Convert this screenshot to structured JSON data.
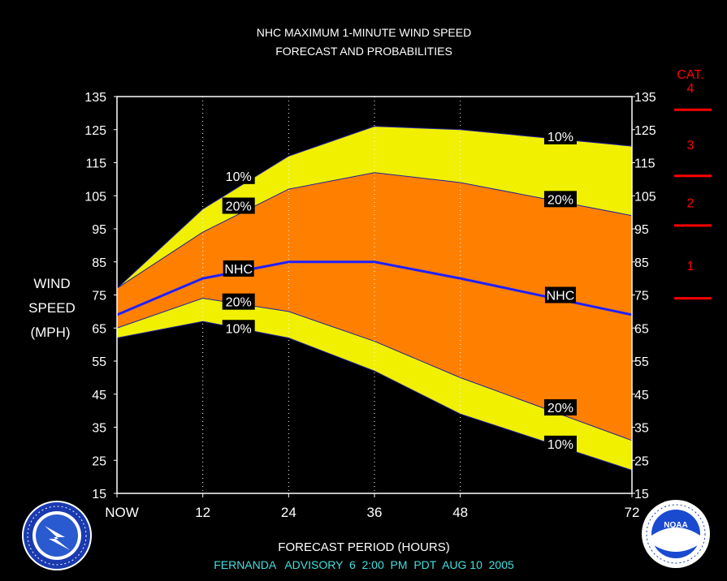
{
  "chart_data": {
    "type": "area",
    "title": "NHC MAXIMUM 1-MINUTE WIND SPEED",
    "subtitle": "FORECAST AND PROBABILITIES",
    "xlabel": "FORECAST PERIOD (HOURS)",
    "ylabel_lines": [
      "WIND",
      "SPEED",
      "(MPH)"
    ],
    "footer": "FERNANDA   ADVISORY  6  2:00  PM  PDT  AUG 10  2005",
    "x_tick_labels": [
      "NOW",
      "12",
      "24",
      "36",
      "48",
      "72"
    ],
    "x_tick_values": [
      0,
      12,
      24,
      36,
      48,
      72
    ],
    "y_ticks": [
      15,
      25,
      35,
      45,
      55,
      65,
      75,
      85,
      95,
      105,
      115,
      125,
      135
    ],
    "xlim": [
      0,
      72
    ],
    "ylim": [
      15,
      135
    ],
    "grid": "dotted vertical lines at 12, 24, 36, 48",
    "x": [
      0,
      12,
      24,
      36,
      48,
      72
    ],
    "series": [
      {
        "role": "upper_10",
        "values": [
          77,
          101,
          117,
          126,
          125,
          120
        ]
      },
      {
        "role": "upper_20",
        "values": [
          77,
          94,
          107,
          112,
          109,
          99
        ]
      },
      {
        "role": "nhc",
        "values": [
          69,
          80,
          85,
          85,
          80,
          69
        ]
      },
      {
        "role": "lower_20",
        "values": [
          65,
          74,
          70,
          61,
          50,
          31
        ]
      },
      {
        "role": "lower_10",
        "values": [
          62,
          67,
          62,
          52,
          39,
          22
        ]
      }
    ],
    "band_labels": [
      {
        "text": "10%",
        "x": 17,
        "y": 111
      },
      {
        "text": "20%",
        "x": 17,
        "y": 102
      },
      {
        "text": "NHC",
        "x": 17,
        "y": 83
      },
      {
        "text": "20%",
        "x": 17,
        "y": 73
      },
      {
        "text": "10%",
        "x": 17,
        "y": 65
      },
      {
        "text": "10%",
        "x": 62,
        "y": 123
      },
      {
        "text": "20%",
        "x": 62,
        "y": 104
      },
      {
        "text": "NHC",
        "x": 62,
        "y": 75
      },
      {
        "text": "20%",
        "x": 62,
        "y": 41
      },
      {
        "text": "10%",
        "x": 62,
        "y": 30
      }
    ],
    "category_title": "CAT.",
    "categories": [
      {
        "label": "4",
        "mid_mph": 140
      },
      {
        "label": "3",
        "mid_mph": 120.5
      },
      {
        "label": "2",
        "mid_mph": 103
      },
      {
        "label": "1",
        "mid_mph": 84
      }
    ],
    "category_boundaries_mph": [
      131,
      111,
      96,
      74
    ],
    "colors": {
      "background": "#000000",
      "outer_band": "#f0f000",
      "inner_band": "#ff8000",
      "nhc_line": "#2020ff",
      "category": "#ff0000",
      "footer": "#40e0e0",
      "text": "#ffffff"
    }
  }
}
